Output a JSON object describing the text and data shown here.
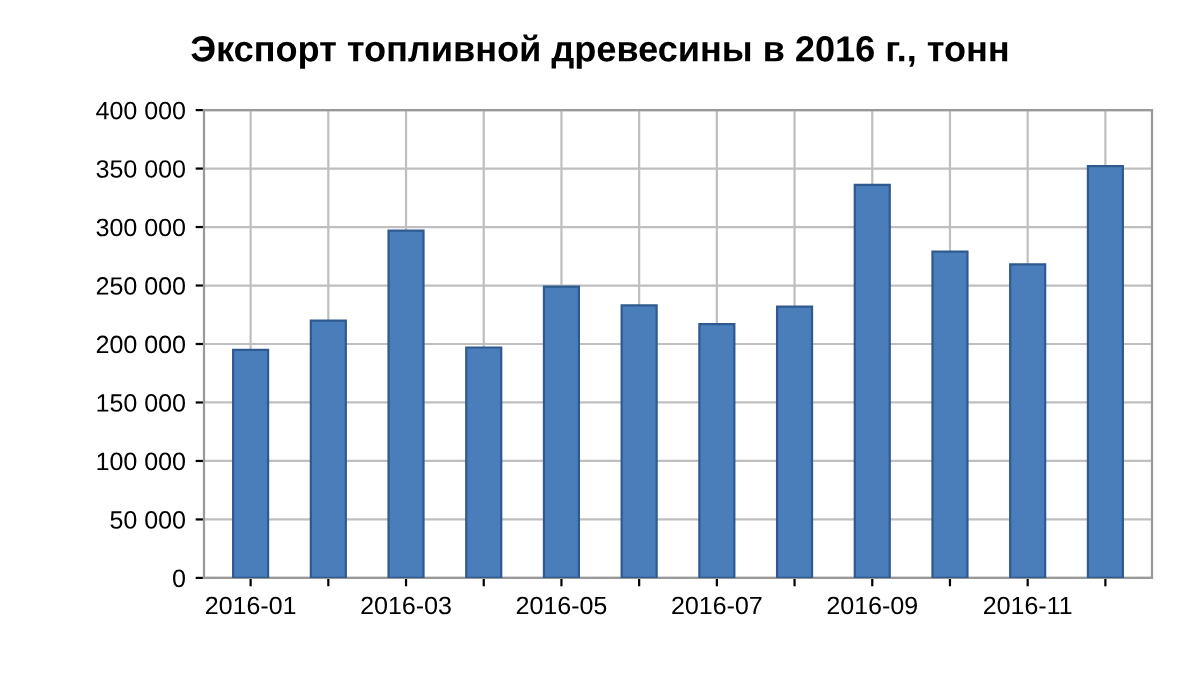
{
  "chart_data": {
    "type": "bar",
    "title": "Экспорт топливной древесины в 2016 г., тонн",
    "categories": [
      "2016-01",
      null,
      "2016-03",
      null,
      "2016-05",
      null,
      "2016-07",
      null,
      "2016-09",
      null,
      "2016-11",
      null
    ],
    "values": [
      195000,
      220000,
      297000,
      197000,
      249000,
      233000,
      217000,
      232000,
      336000,
      279000,
      268000,
      352000
    ],
    "color": "#4a7ebb",
    "ylim": [
      0,
      400000
    ],
    "yticks": [
      0,
      {
        "value": 50000,
        "label": "50 000"
      },
      {
        "value": 100000,
        "label": "100 000"
      },
      {
        "value": 150000,
        "label": "150 000"
      },
      {
        "value": 200000,
        "label": "200 000"
      },
      {
        "value": 250000,
        "label": "250 000"
      },
      {
        "value": 300000,
        "label": "300 000"
      },
      {
        "value": 350000,
        "label": "350 000"
      },
      {
        "value": 400000,
        "label": "400 000"
      }
    ],
    "grid": true
  }
}
